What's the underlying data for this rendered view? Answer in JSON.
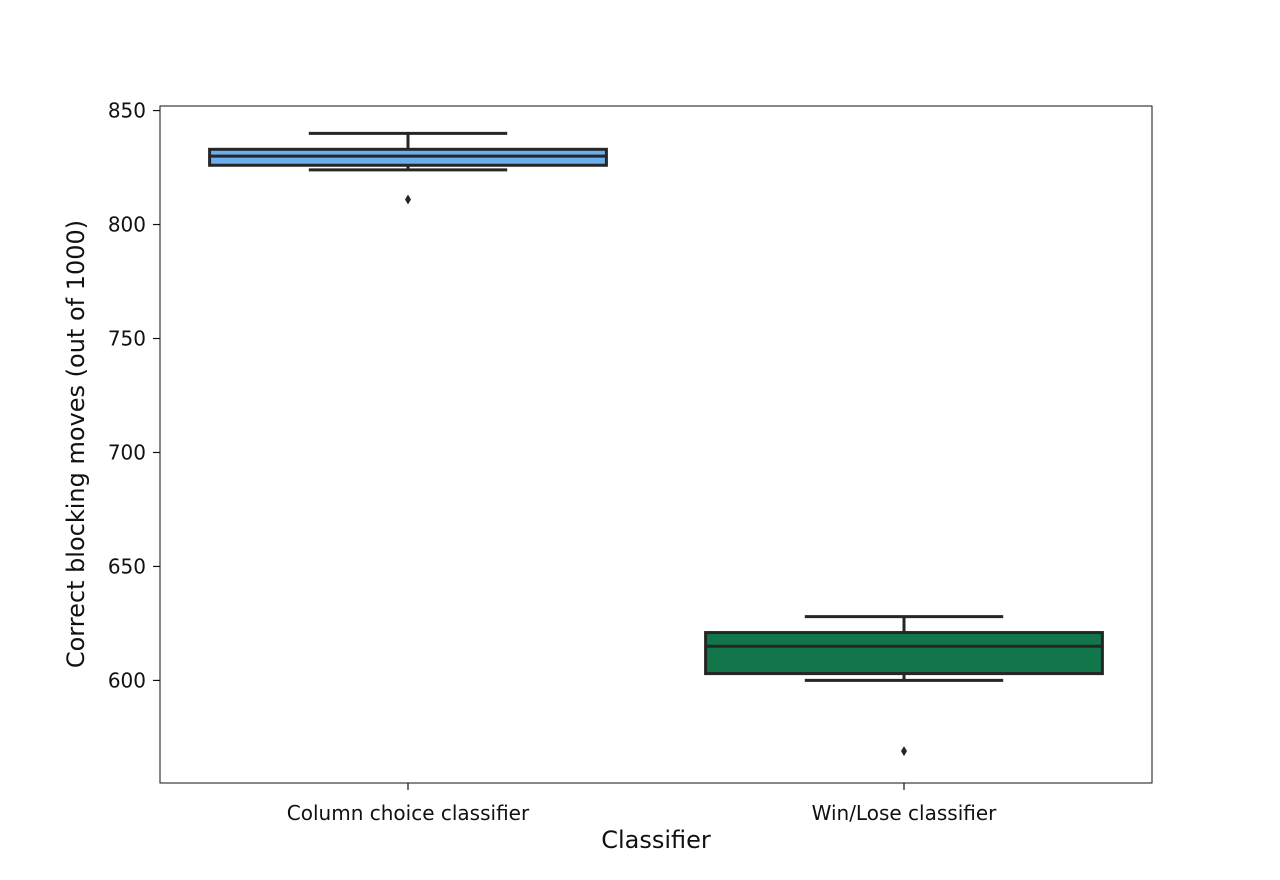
{
  "chart_data": {
    "type": "box",
    "xlabel": "Classifier",
    "ylabel": "Correct blocking moves (out of 1000)",
    "ylim": [
      555,
      852
    ],
    "yticks": [
      600,
      650,
      700,
      750,
      800,
      850
    ],
    "grid": false,
    "categories": [
      "Column choice classifier",
      "Win/Lose classifier"
    ],
    "boxes": [
      {
        "category": "Column choice classifier",
        "color": "#6aaef0",
        "whisker_low": 824,
        "q1": 826,
        "median": 830,
        "q3": 833,
        "whisker_high": 840,
        "outliers": [
          811
        ]
      },
      {
        "category": "Win/Lose classifier",
        "color": "#11774a",
        "whisker_low": 600,
        "q1": 603,
        "median": 615,
        "q3": 621,
        "whisker_high": 628,
        "outliers": [
          569
        ]
      }
    ]
  }
}
